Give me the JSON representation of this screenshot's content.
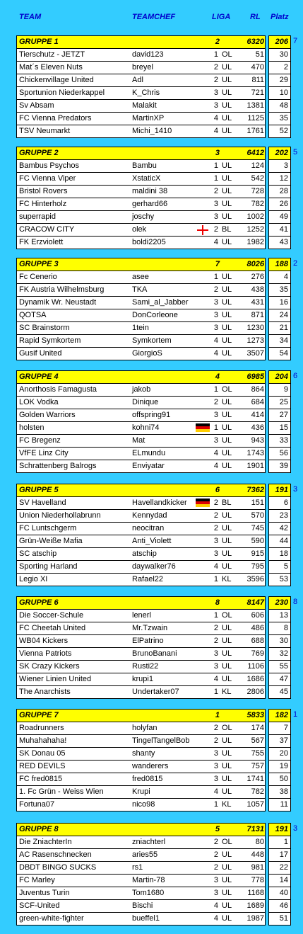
{
  "header": {
    "team": "TEAM",
    "teamchef": "TEAMCHEF",
    "liga": "LIGA",
    "rl": "RL",
    "platz": "Platz"
  },
  "groups": [
    {
      "name": "GRUPPE 1",
      "num": "2",
      "points": "6320",
      "platz": "206",
      "rank": "7",
      "rows": [
        {
          "team": "Tierschutz - JETZT",
          "chef": "david123",
          "liga": "1",
          "lg": "OL",
          "rl": "51",
          "platz": "30"
        },
        {
          "team": "Mat´s Eleven Nuts",
          "chef": "breyel",
          "liga": "2",
          "lg": "UL",
          "rl": "470",
          "platz": "2"
        },
        {
          "team": "Chickenvillage United",
          "chef": "Adl",
          "liga": "2",
          "lg": "UL",
          "rl": "811",
          "platz": "29"
        },
        {
          "team": "Sportunion Niederkappel",
          "chef": "K_Chris",
          "liga": "3",
          "lg": "UL",
          "rl": "721",
          "platz": "10"
        },
        {
          "team": "Sv Absam",
          "chef": "Malakit",
          "liga": "3",
          "lg": "UL",
          "rl": "1381",
          "platz": "48"
        },
        {
          "team": "FC Vienna Predators",
          "chef": "MartinXP",
          "liga": "4",
          "lg": "UL",
          "rl": "1125",
          "platz": "35"
        },
        {
          "team": "TSV Neumarkt",
          "chef": "Michi_1410",
          "liga": "4",
          "lg": "UL",
          "rl": "1761",
          "platz": "52"
        }
      ]
    },
    {
      "name": "GRUPPE 2",
      "num": "3",
      "points": "6412",
      "platz": "202",
      "rank": "5",
      "rows": [
        {
          "team": "Bambus Psychos",
          "chef": "Bambu",
          "liga": "1",
          "lg": "UL",
          "rl": "124",
          "platz": "3"
        },
        {
          "team": "FC Vienna Viper",
          "chef": "XstaticX",
          "liga": "1",
          "lg": "UL",
          "rl": "542",
          "platz": "12"
        },
        {
          "team": "Bristol Rovers",
          "chef": "maldini 38",
          "liga": "2",
          "lg": "UL",
          "rl": "728",
          "platz": "28"
        },
        {
          "team": "FC Hinterholz",
          "chef": "gerhard66",
          "liga": "3",
          "lg": "UL",
          "rl": "782",
          "platz": "26"
        },
        {
          "team": "superrapid",
          "chef": "joschy",
          "liga": "3",
          "lg": "UL",
          "rl": "1002",
          "platz": "49"
        },
        {
          "team": "CRACOW CITY",
          "chef": "olek",
          "liga": "2",
          "lg": "BL",
          "rl": "1252",
          "platz": "41",
          "flag": "cross"
        },
        {
          "team": "FK Erzviolett",
          "chef": "boldi2205",
          "liga": "4",
          "lg": "UL",
          "rl": "1982",
          "platz": "43"
        }
      ]
    },
    {
      "name": "GRUPPE 3",
      "num": "7",
      "points": "8026",
      "platz": "188",
      "rank": "2",
      "rows": [
        {
          "team": "Fc Cenerio",
          "chef": "asee",
          "liga": "1",
          "lg": "UL",
          "rl": "276",
          "platz": "4"
        },
        {
          "team": "FK Austria Wilhelmsburg",
          "chef": "TKA",
          "liga": "2",
          "lg": "UL",
          "rl": "438",
          "platz": "35"
        },
        {
          "team": "Dynamik Wr. Neustadt",
          "chef": "Sami_al_Jabber",
          "liga": "3",
          "lg": "UL",
          "rl": "431",
          "platz": "16"
        },
        {
          "team": "QOTSA",
          "chef": "DonCorleone",
          "liga": "3",
          "lg": "UL",
          "rl": "871",
          "platz": "24"
        },
        {
          "team": "SC Brainstorm",
          "chef": "1tein",
          "liga": "3",
          "lg": "UL",
          "rl": "1230",
          "platz": "21"
        },
        {
          "team": "Rapid Symkortem",
          "chef": "Symkortem",
          "liga": "4",
          "lg": "UL",
          "rl": "1273",
          "platz": "34"
        },
        {
          "team": "Gusif United",
          "chef": "GiorgioS",
          "liga": "4",
          "lg": "UL",
          "rl": "3507",
          "platz": "54"
        }
      ]
    },
    {
      "name": "GRUPPE 4",
      "num": "4",
      "points": "6985",
      "platz": "204",
      "rank": "6",
      "rows": [
        {
          "team": "Anorthosis Famagusta",
          "chef": "jakob",
          "liga": "1",
          "lg": "OL",
          "rl": "864",
          "platz": "9"
        },
        {
          "team": "LOK Vodka",
          "chef": "Dinique",
          "liga": "2",
          "lg": "UL",
          "rl": "684",
          "platz": "25"
        },
        {
          "team": "Golden Warriors",
          "chef": "offspring91",
          "liga": "3",
          "lg": "UL",
          "rl": "414",
          "platz": "27"
        },
        {
          "team": "holsten",
          "chef": "kohni74",
          "liga": "1",
          "lg": "UL",
          "rl": "436",
          "platz": "15",
          "flag": "de"
        },
        {
          "team": "FC Bregenz",
          "chef": "Mat",
          "liga": "3",
          "lg": "UL",
          "rl": "943",
          "platz": "33"
        },
        {
          "team": "VfFE Linz City",
          "chef": "ELmundu",
          "liga": "4",
          "lg": "UL",
          "rl": "1743",
          "platz": "56"
        },
        {
          "team": "Schrattenberg Balrogs",
          "chef": "Enviyatar",
          "liga": "4",
          "lg": "UL",
          "rl": "1901",
          "platz": "39"
        }
      ]
    },
    {
      "name": "GRUPPE 5",
      "num": "6",
      "points": "7362",
      "platz": "191",
      "rank": "3",
      "rows": [
        {
          "team": "SV Havelland",
          "chef": "Havellandkicker",
          "liga": "2",
          "lg": "BL",
          "rl": "151",
          "platz": "6",
          "flag": "de"
        },
        {
          "team": "Union Niederhollabrunn",
          "chef": "Kennydad",
          "liga": "2",
          "lg": "UL",
          "rl": "570",
          "platz": "23"
        },
        {
          "team": "FC Luntschgerm",
          "chef": "neocitran",
          "liga": "2",
          "lg": "UL",
          "rl": "745",
          "platz": "42"
        },
        {
          "team": "Grün-Weiße Mafia",
          "chef": "Anti_Violett",
          "liga": "3",
          "lg": "UL",
          "rl": "590",
          "platz": "44"
        },
        {
          "team": "SC atschip",
          "chef": "atschip",
          "liga": "3",
          "lg": "UL",
          "rl": "915",
          "platz": "18"
        },
        {
          "team": "Sporting Harland",
          "chef": "daywalker76",
          "liga": "4",
          "lg": "UL",
          "rl": "795",
          "platz": "5"
        },
        {
          "team": "Legio XI",
          "chef": "Rafael22",
          "liga": "1",
          "lg": "KL",
          "rl": "3596",
          "platz": "53"
        }
      ]
    },
    {
      "name": "GRUPPE 6",
      "num": "8",
      "points": "8147",
      "platz": "230",
      "rank": "8",
      "rows": [
        {
          "team": "Die Soccer-Schule",
          "chef": "lenerl",
          "liga": "1",
          "lg": "OL",
          "rl": "606",
          "platz": "13"
        },
        {
          "team": "FC Cheetah United",
          "chef": "Mr.Tzwain",
          "liga": "2",
          "lg": "UL",
          "rl": "486",
          "platz": "8"
        },
        {
          "team": "WB04 Kickers",
          "chef": "ElPatrino",
          "liga": "2",
          "lg": "UL",
          "rl": "688",
          "platz": "30"
        },
        {
          "team": "Vienna Patriots",
          "chef": "BrunoBanani",
          "liga": "3",
          "lg": "UL",
          "rl": "769",
          "platz": "32"
        },
        {
          "team": "SK Crazy Kickers",
          "chef": "Rusti22",
          "liga": "3",
          "lg": "UL",
          "rl": "1106",
          "platz": "55"
        },
        {
          "team": "Wiener Linien United",
          "chef": "krupi1",
          "liga": "4",
          "lg": "UL",
          "rl": "1686",
          "platz": "47"
        },
        {
          "team": "The Anarchists",
          "chef": "Undertaker07",
          "liga": "1",
          "lg": "KL",
          "rl": "2806",
          "platz": "45"
        }
      ]
    },
    {
      "name": "GRUPPE 7",
      "num": "1",
      "points": "5833",
      "platz": "182",
      "rank": "1",
      "rows": [
        {
          "team": "Roadrunners",
          "chef": "holyfan",
          "liga": "2",
          "lg": "OL",
          "rl": "174",
          "platz": "7"
        },
        {
          "team": "Muhahahaha!",
          "chef": "TingelTangelBob",
          "liga": "2",
          "lg": "UL",
          "rl": "567",
          "platz": "37"
        },
        {
          "team": "SK Donau 05",
          "chef": "shanty",
          "liga": "3",
          "lg": "UL",
          "rl": "755",
          "platz": "20"
        },
        {
          "team": "RED DEVILS",
          "chef": "wanderers",
          "liga": "3",
          "lg": "UL",
          "rl": "757",
          "platz": "19"
        },
        {
          "team": "FC fred0815",
          "chef": "fred0815",
          "liga": "3",
          "lg": "UL",
          "rl": "1741",
          "platz": "50"
        },
        {
          "team": "1. Fc Grün - Weiss Wien",
          "chef": "Krupi",
          "liga": "4",
          "lg": "UL",
          "rl": "782",
          "platz": "38"
        },
        {
          "team": "Fortuna07",
          "chef": "nico98",
          "liga": "1",
          "lg": "KL",
          "rl": "1057",
          "platz": "11"
        }
      ]
    },
    {
      "name": "GRUPPE 8",
      "num": "5",
      "points": "7131",
      "platz": "191",
      "rank": "3",
      "rows": [
        {
          "team": "Die ZniachterIn",
          "chef": "zniachterl",
          "liga": "2",
          "lg": "OL",
          "rl": "80",
          "platz": "1"
        },
        {
          "team": "AC Rasenschnecken",
          "chef": "aries55",
          "liga": "2",
          "lg": "UL",
          "rl": "448",
          "platz": "17"
        },
        {
          "team": "DBDT BINGO SUCKS",
          "chef": "rs1",
          "liga": "2",
          "lg": "UL",
          "rl": "981",
          "platz": "22"
        },
        {
          "team": "FC Marley",
          "chef": "Martin-78",
          "liga": "3",
          "lg": "UL",
          "rl": "778",
          "platz": "14"
        },
        {
          "team": "Juventus Turin",
          "chef": "Tom1680",
          "liga": "3",
          "lg": "UL",
          "rl": "1168",
          "platz": "40"
        },
        {
          "team": "SCF-United",
          "chef": "Bischi",
          "liga": "4",
          "lg": "UL",
          "rl": "1689",
          "platz": "46"
        },
        {
          "team": "green-white-fighter",
          "chef": "bueffel1",
          "liga": "4",
          "lg": "UL",
          "rl": "1987",
          "platz": "51"
        }
      ]
    }
  ]
}
